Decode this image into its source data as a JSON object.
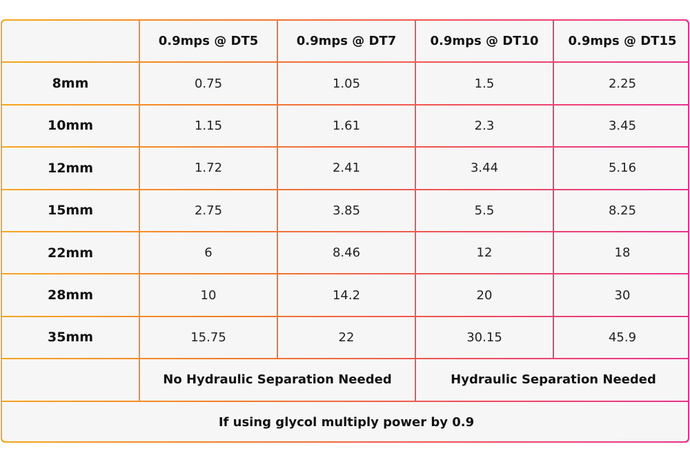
{
  "table": {
    "columns": [
      "",
      "0.9mps @ DT5",
      "0.9mps @ DT7",
      "0.9mps @ DT10",
      "0.9mps @ DT15"
    ],
    "rows": [
      {
        "size": "8mm",
        "values": [
          "0.75",
          "1.05",
          "1.5",
          "2.25"
        ]
      },
      {
        "size": "10mm",
        "values": [
          "1.15",
          "1.61",
          "2.3",
          "3.45"
        ]
      },
      {
        "size": "12mm",
        "values": [
          "1.72",
          "2.41",
          "3.44",
          "5.16"
        ]
      },
      {
        "size": "15mm",
        "values": [
          "2.75",
          "3.85",
          "5.5",
          "8.25"
        ]
      },
      {
        "size": "22mm",
        "values": [
          "6",
          "8.46",
          "12",
          "18"
        ]
      },
      {
        "size": "28mm",
        "values": [
          "10",
          "14.2",
          "20",
          "30"
        ]
      },
      {
        "size": "35mm",
        "values": [
          "15.75",
          "22",
          "30.15",
          "45.9"
        ]
      }
    ],
    "separation_notes": [
      "No Hydraulic Separation Needed",
      "Hydraulic Separation Needed"
    ],
    "footer": "If using glycol multiply power by 0.9"
  },
  "colors": {
    "gradient_start": "#f7a51f",
    "gradient_mid": "#ef4a5e",
    "gradient_end": "#e8308f",
    "cell_background": "#f6f6f6"
  }
}
